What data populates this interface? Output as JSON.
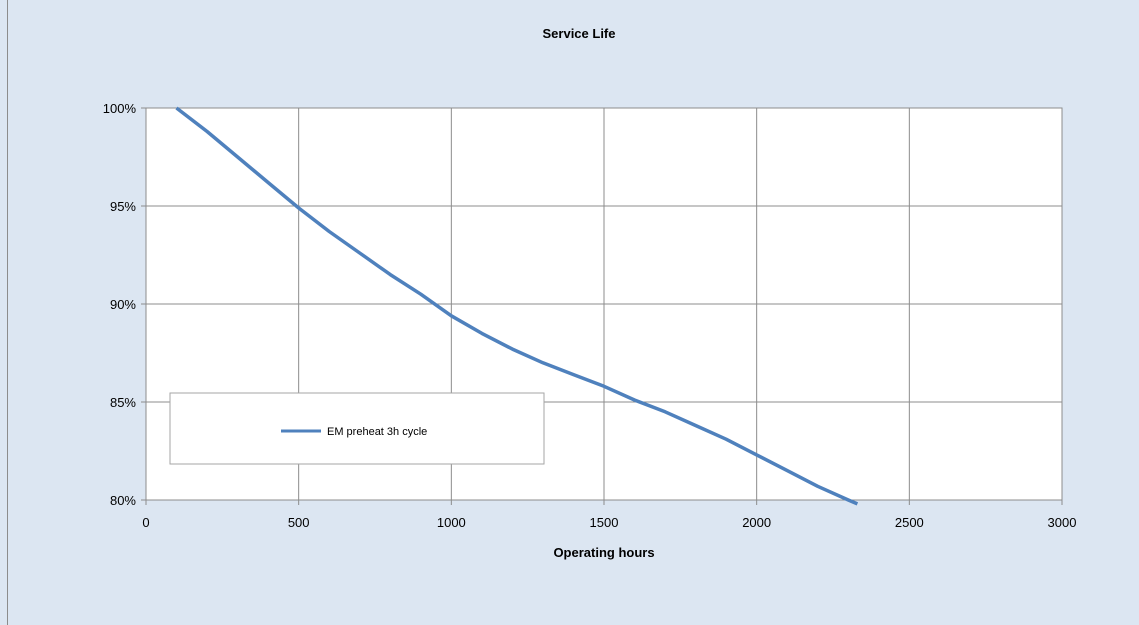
{
  "chart_data": {
    "type": "line",
    "title": "Service Life",
    "xlabel": "Operating hours",
    "ylabel": "",
    "xlim": [
      0,
      3000
    ],
    "ylim": [
      0.8,
      1.0
    ],
    "x_ticks": [
      0,
      500,
      1000,
      1500,
      2000,
      2500,
      3000
    ],
    "y_ticks": [
      0.8,
      0.85,
      0.9,
      0.95,
      1.0
    ],
    "x_tick_labels": [
      "0",
      "500",
      "1000",
      "1500",
      "2000",
      "2500",
      "3000"
    ],
    "y_tick_labels": [
      "80%",
      "85%",
      "90%",
      "95%",
      "100%"
    ],
    "grid": true,
    "legend_position": "left-center",
    "series": [
      {
        "name": "EM preheat 3h cycle",
        "color": "#4f81bd",
        "x": [
          100,
          200,
          300,
          400,
          500,
          600,
          700,
          800,
          900,
          1000,
          1100,
          1200,
          1300,
          1400,
          1500,
          1600,
          1700,
          1800,
          1900,
          2000,
          2100,
          2200,
          2300,
          2330
        ],
        "y": [
          1.0,
          0.988,
          0.975,
          0.962,
          0.949,
          0.937,
          0.926,
          0.915,
          0.905,
          0.894,
          0.885,
          0.877,
          0.87,
          0.864,
          0.858,
          0.851,
          0.845,
          0.838,
          0.831,
          0.823,
          0.815,
          0.807,
          0.8,
          0.798
        ]
      }
    ]
  }
}
